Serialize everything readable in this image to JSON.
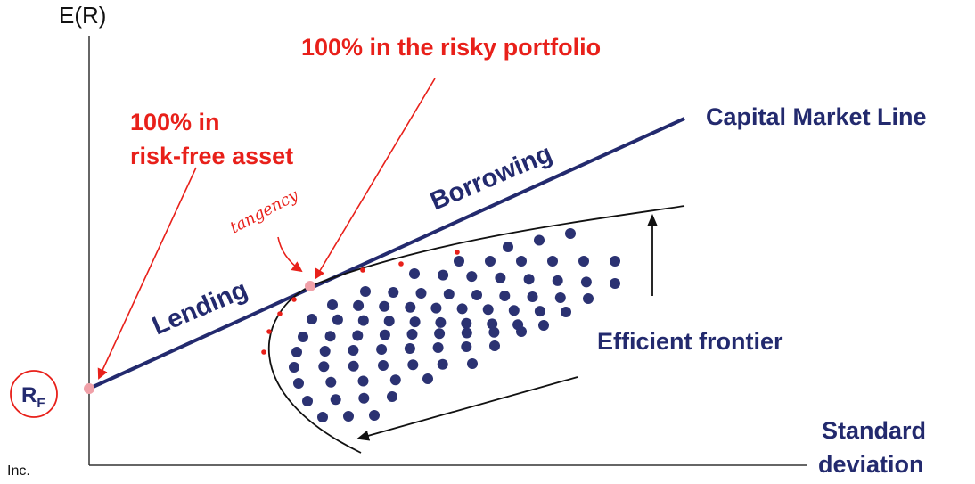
{
  "axes": {
    "y_label": "E(R)",
    "x_label_line1": "Standard",
    "x_label_line2": "deviation"
  },
  "labels": {
    "risky_portfolio": "100% in the risky portfolio",
    "risk_free_line1": "100% in",
    "risk_free_line2": "risk-free asset",
    "cml": "Capital Market Line",
    "borrowing": "Borrowing",
    "lending": "Lending",
    "efficient_frontier": "Efficient frontier",
    "rf_main": "R",
    "rf_sub": "F",
    "handwritten_tangency": "tangency",
    "corner_text": "Inc."
  },
  "colors": {
    "navy": "#232a6e",
    "red": "#e8201a",
    "dot": "#2b3272",
    "point": "#f0a0a8"
  }
}
